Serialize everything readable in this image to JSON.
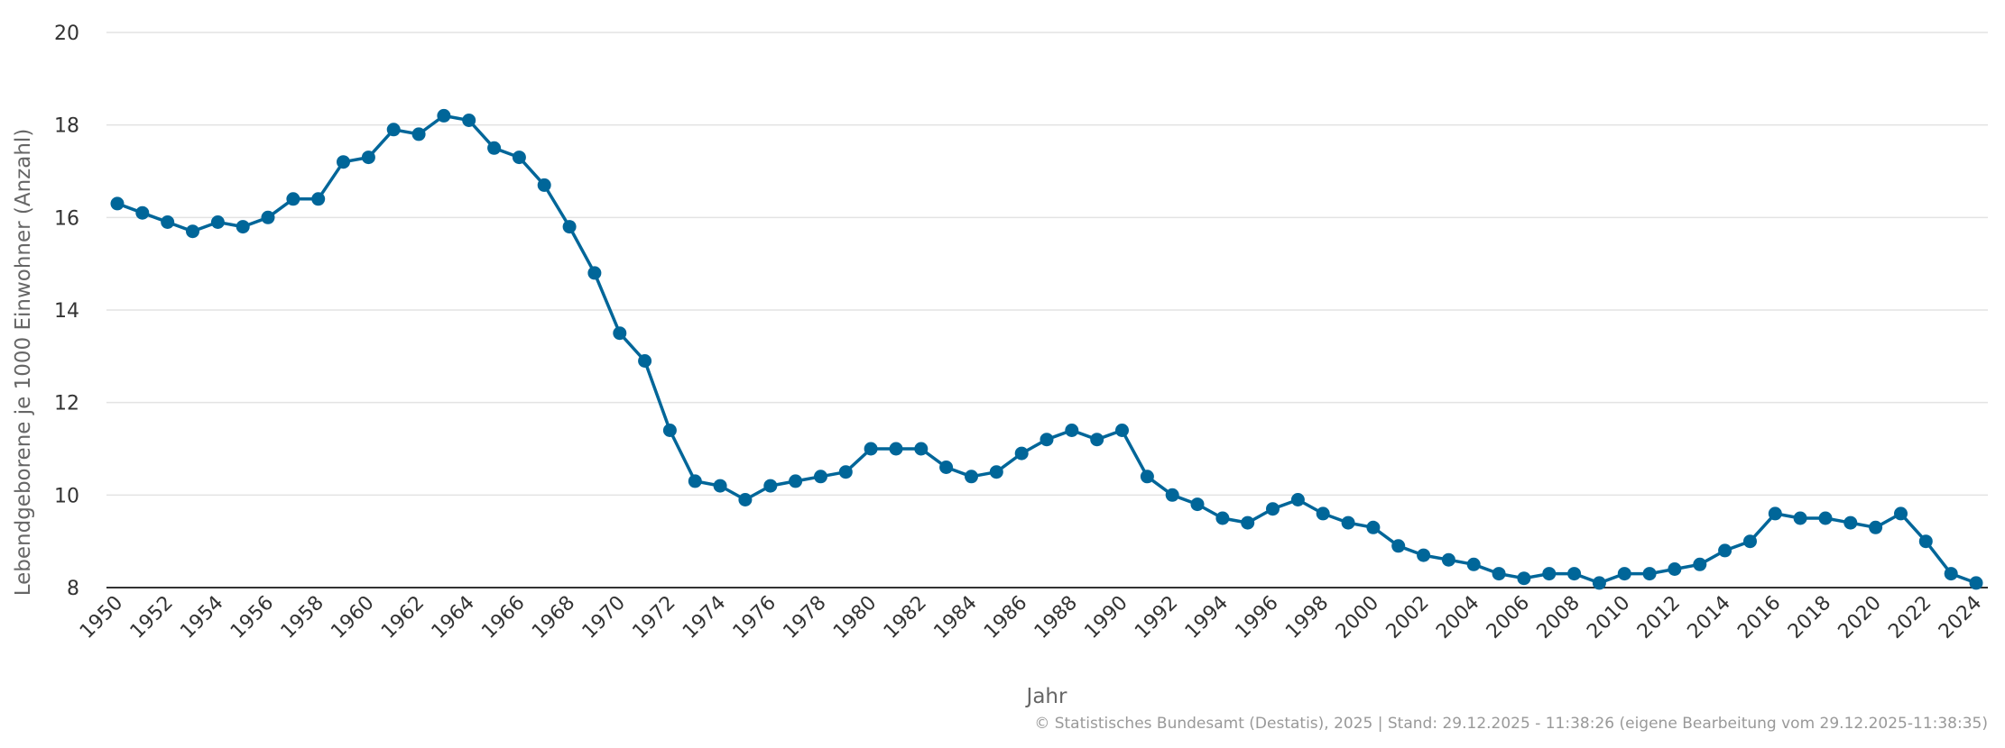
{
  "chart_data": {
    "type": "line",
    "xlabel": "Jahr",
    "ylabel": "Lebendgeborene je 1000 Einwohner (Anzahl)",
    "ylim": [
      8,
      20
    ],
    "yticks": [
      8,
      10,
      12,
      14,
      16,
      18,
      20
    ],
    "xlim": [
      1950,
      2024
    ],
    "xticks": [
      1950,
      1952,
      1954,
      1956,
      1958,
      1960,
      1962,
      1964,
      1966,
      1968,
      1970,
      1972,
      1974,
      1976,
      1978,
      1980,
      1982,
      1984,
      1986,
      1988,
      1990,
      1992,
      1994,
      1996,
      1998,
      2000,
      2002,
      2004,
      2006,
      2008,
      2010,
      2012,
      2014,
      2016,
      2018,
      2020,
      2022,
      2024
    ],
    "grid": true,
    "legend": "none",
    "series": [
      {
        "color": "#006699",
        "x": [
          1950,
          1951,
          1952,
          1953,
          1954,
          1955,
          1956,
          1957,
          1958,
          1959,
          1960,
          1961,
          1962,
          1963,
          1964,
          1965,
          1966,
          1967,
          1968,
          1969,
          1970,
          1971,
          1972,
          1973,
          1974,
          1975,
          1976,
          1977,
          1978,
          1979,
          1980,
          1981,
          1982,
          1983,
          1984,
          1985,
          1986,
          1987,
          1988,
          1989,
          1990,
          1991,
          1992,
          1993,
          1994,
          1995,
          1996,
          1997,
          1998,
          1999,
          2000,
          2001,
          2002,
          2003,
          2004,
          2005,
          2006,
          2007,
          2008,
          2009,
          2010,
          2011,
          2012,
          2013,
          2014,
          2015,
          2016,
          2017,
          2018,
          2019,
          2020,
          2021,
          2022,
          2023,
          2024
        ],
        "values": [
          16.3,
          16.1,
          15.9,
          15.7,
          15.9,
          15.8,
          16.0,
          16.4,
          16.4,
          17.2,
          17.3,
          17.9,
          17.8,
          18.2,
          18.1,
          17.5,
          17.3,
          16.7,
          15.8,
          14.8,
          13.5,
          12.9,
          11.4,
          10.3,
          10.2,
          9.9,
          10.2,
          10.3,
          10.4,
          10.5,
          11.0,
          11.0,
          11.0,
          10.6,
          10.4,
          10.5,
          10.9,
          11.2,
          11.4,
          11.2,
          11.4,
          10.4,
          10.0,
          9.8,
          9.5,
          9.4,
          9.7,
          9.9,
          9.6,
          9.4,
          9.3,
          8.9,
          8.7,
          8.6,
          8.5,
          8.3,
          8.2,
          8.3,
          8.3,
          8.1,
          8.3,
          8.3,
          8.4,
          8.5,
          8.8,
          9.0,
          9.6,
          9.5,
          9.5,
          9.4,
          9.3,
          9.6,
          9.0,
          8.3,
          8.1
        ]
      }
    ]
  },
  "credit": "© Statistisches Bundesamt (Destatis), 2025 | Stand: 29.12.2025 - 11:38:26 (eigene Bearbeitung vom 29.12.2025-11:38:35)"
}
